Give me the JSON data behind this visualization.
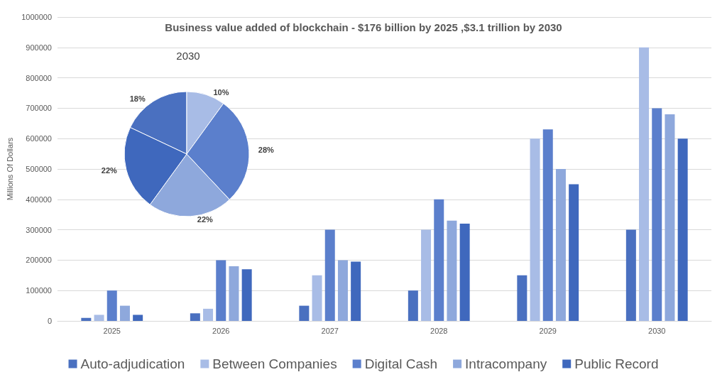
{
  "chart_data": [
    {
      "type": "bar",
      "title": "Business value added of blockchain - $176 billion by 2025 ,$3.1 trillion by 2030",
      "ylabel": "Millions Of Dollars",
      "categories": [
        "2025",
        "2026",
        "2027",
        "2028",
        "2029",
        "2030"
      ],
      "series": [
        {
          "name": "Auto-adjudication",
          "color": "#4a70c0",
          "values": [
            10000,
            25000,
            50000,
            100000,
            150000,
            300000
          ]
        },
        {
          "name": "Between Companies",
          "color": "#a8bce6",
          "values": [
            20000,
            40000,
            150000,
            300000,
            600000,
            900000
          ]
        },
        {
          "name": "Digital Cash",
          "color": "#5b7fcc",
          "values": [
            100000,
            200000,
            300000,
            400000,
            630000,
            700000
          ]
        },
        {
          "name": "Intracompany",
          "color": "#8ea8dc",
          "values": [
            50000,
            180000,
            200000,
            330000,
            500000,
            680000
          ]
        },
        {
          "name": "Public Record",
          "color": "#3f68bd",
          "values": [
            20000,
            170000,
            195000,
            320000,
            450000,
            600000
          ]
        }
      ],
      "ylim": [
        0,
        1000000
      ],
      "yticks": [
        0,
        100000,
        200000,
        300000,
        400000,
        500000,
        600000,
        700000,
        800000,
        900000,
        1000000
      ],
      "grid": "y",
      "legend": "bottom"
    },
    {
      "type": "pie",
      "title": "2030",
      "categories": [
        null,
        null,
        null,
        null,
        null
      ],
      "values": [
        18,
        10,
        28,
        22,
        22
      ],
      "colors": [
        "#4a70c0",
        "#a8bce6",
        "#5b7fcc",
        "#8ea8dc",
        "#3f68bd"
      ],
      "value_labels": [
        "18%",
        "10%",
        "28%",
        "22%",
        "22%"
      ]
    }
  ]
}
